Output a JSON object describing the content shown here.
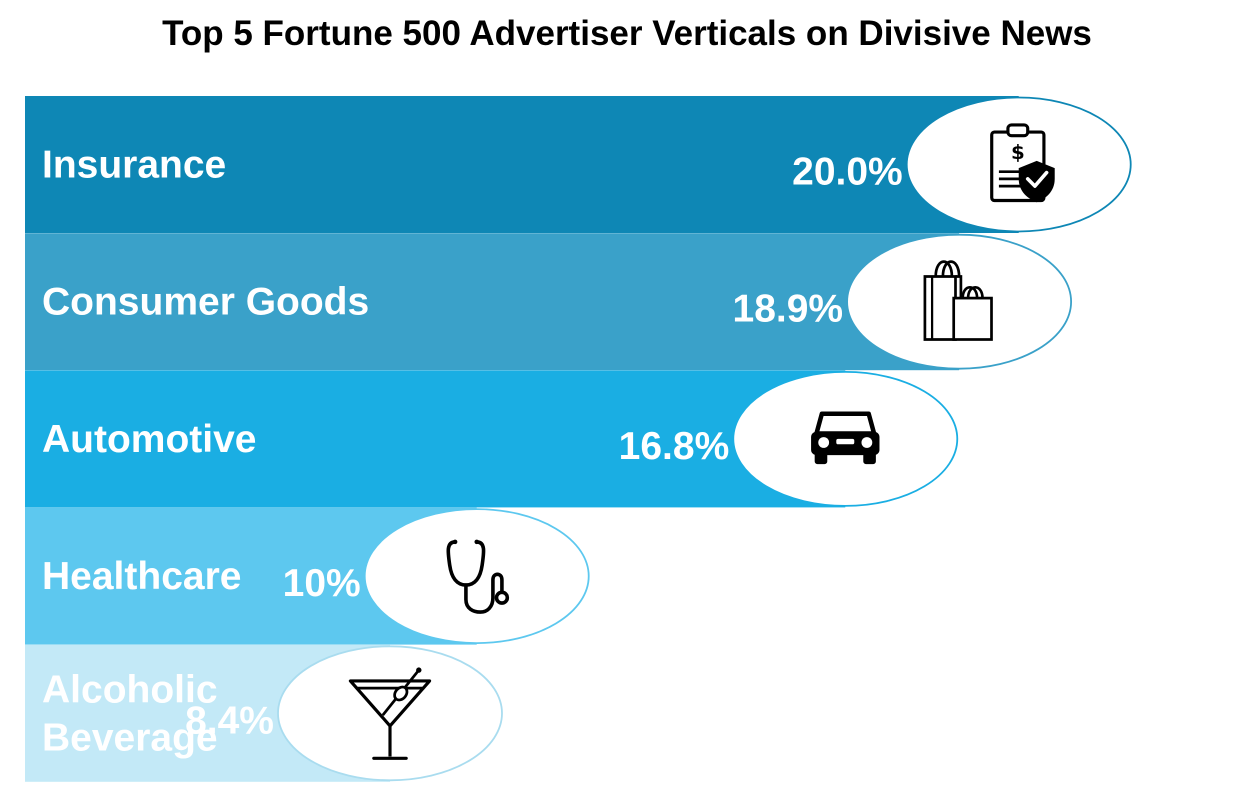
{
  "chart_data": {
    "type": "bar",
    "orientation": "horizontal",
    "title": "Top 5 Fortune 500 Advertiser Verticals on Divisive News",
    "xlabel": "",
    "ylabel": "",
    "unit": "%",
    "categories": [
      "Insurance",
      "Consumer Goods",
      "Automotive",
      "Healthcare",
      "Alcoholic Beverage"
    ],
    "label_lines": [
      [
        "Insurance"
      ],
      [
        "Consumer Goods"
      ],
      [
        "Automotive"
      ],
      [
        "Healthcare"
      ],
      [
        "Alcoholic",
        "Beverage"
      ]
    ],
    "values": [
      20.0,
      18.9,
      16.8,
      10,
      8.4
    ],
    "value_labels": [
      "20.0%",
      "18.9%",
      "16.8%",
      "10%",
      "8.4%"
    ],
    "colors": [
      "#0e87b5",
      "#3aa1c9",
      "#1aaee3",
      "#5dc8ef",
      "#c3e9f7"
    ],
    "outline_colors": [
      "#0e87b5",
      "#3aa1c9",
      "#1aaee3",
      "#5dc8ef",
      "#a9dcef"
    ],
    "icons": [
      "insurance-policy-icon",
      "shopping-bags-icon",
      "car-icon",
      "stethoscope-icon",
      "martini-glass-icon"
    ],
    "grid": false,
    "legend": "none"
  }
}
